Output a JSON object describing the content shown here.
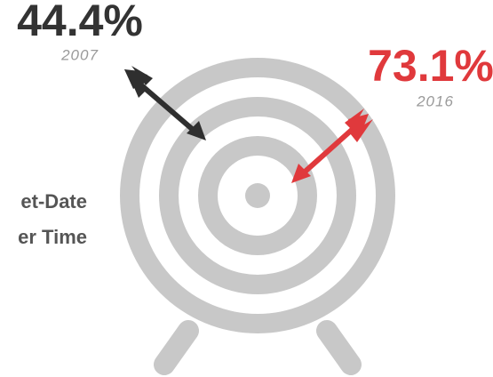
{
  "stats": [
    {
      "value": "44.4%",
      "year": "2007"
    },
    {
      "value": "73.1%",
      "year": "2016"
    }
  ],
  "caption": [
    "et-Date",
    "er Time"
  ]
}
